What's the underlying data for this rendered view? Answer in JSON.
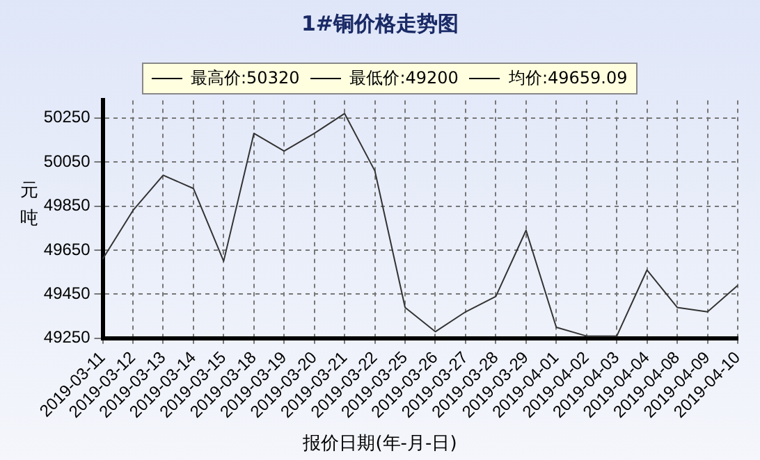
{
  "chart_data": {
    "type": "line",
    "title": "1#铜价格走势图",
    "xlabel": "报价日期(年-月-日)",
    "ylabel": "元吨",
    "annotations": [
      "最高价:50320",
      "最低价:49200",
      "均价:49659.09"
    ],
    "categories": [
      "2019-03-11",
      "2019-03-12",
      "2019-03-13",
      "2019-03-14",
      "2019-03-15",
      "2019-03-18",
      "2019-03-19",
      "2019-03-20",
      "2019-03-21",
      "2019-03-22",
      "2019-03-25",
      "2019-03-26",
      "2019-03-27",
      "2019-03-28",
      "2019-03-29",
      "2019-04-01",
      "2019-04-02",
      "2019-04-03",
      "2019-04-04",
      "2019-04-08",
      "2019-04-09",
      "2019-04-10"
    ],
    "series": [
      {
        "color": "#333333",
        "values": [
          49610,
          49830,
          49990,
          49930,
          49600,
          50180,
          50100,
          50180,
          50270,
          50010,
          49390,
          49280,
          49370,
          49440,
          49740,
          49300,
          49260,
          49260,
          49560,
          49390,
          49370,
          49490
        ]
      }
    ],
    "ylim": [
      49250,
      50330
    ],
    "yticks": [
      49250,
      49450,
      49650,
      49850,
      50050,
      50250
    ],
    "grid": true,
    "line_style": "solid",
    "marker": "none"
  }
}
